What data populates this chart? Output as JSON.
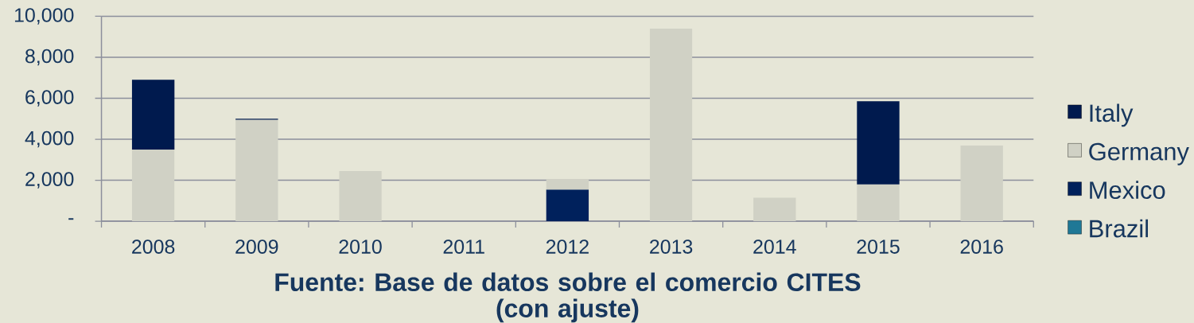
{
  "chart_data": {
    "type": "bar",
    "stacked": true,
    "categories": [
      "2008",
      "2009",
      "2010",
      "2011",
      "2012",
      "2013",
      "2014",
      "2015",
      "2016"
    ],
    "series": [
      {
        "name": "Brazil",
        "color": "#1f7896",
        "values": [
          null,
          null,
          null,
          null,
          null,
          null,
          null,
          null,
          null
        ]
      },
      {
        "name": "Mexico",
        "color": "#00215c",
        "values": [
          null,
          null,
          null,
          null,
          1550,
          null,
          null,
          null,
          null
        ]
      },
      {
        "name": "Germany",
        "color": "#d0d1c5",
        "values": [
          3500,
          4950,
          2450,
          null,
          500,
          9400,
          1150,
          1800,
          3700
        ]
      },
      {
        "name": "Italy",
        "color": "#001a4e",
        "values": [
          3400,
          50,
          null,
          null,
          null,
          null,
          null,
          4050,
          null
        ]
      }
    ],
    "ylim": [
      0,
      10000
    ],
    "yticks": [
      {
        "value": 0,
        "label": "-"
      },
      {
        "value": 2000,
        "label": "2,000"
      },
      {
        "value": 4000,
        "label": "4,000"
      },
      {
        "value": 6000,
        "label": "6,000"
      },
      {
        "value": 8000,
        "label": "8,000"
      },
      {
        "value": 10000,
        "label": "10,000"
      }
    ],
    "grid": "y",
    "legend": "right",
    "annotations": [
      "Fuente: Base de datos sobre el comercio CITES (con ajuste)"
    ]
  }
}
